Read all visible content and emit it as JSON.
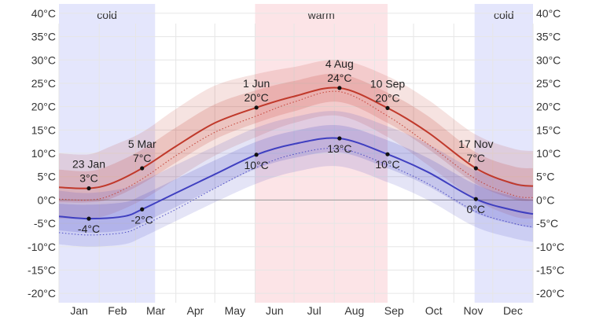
{
  "chart_data": {
    "type": "line",
    "title": "",
    "xlabel": "",
    "ylabel": "",
    "x_axis": {
      "ticks": [
        "Jan",
        "Feb",
        "Mar",
        "Apr",
        "May",
        "Jun",
        "Jul",
        "Aug",
        "Sep",
        "Oct",
        "Nov",
        "Dec"
      ],
      "range_days": [
        0,
        365
      ]
    },
    "y_axis": {
      "ticks": [
        "40°C",
        "35°C",
        "30°C",
        "25°C",
        "20°C",
        "15°C",
        "10°C",
        "5°C",
        "0°C",
        "-5°C",
        "-10°C",
        "-15°C",
        "-20°C"
      ],
      "range": [
        -22,
        42
      ],
      "gridlines": true,
      "zero_line": true
    },
    "seasons": [
      {
        "label": "cold",
        "start_day": 0,
        "end_day": 74,
        "color": "#e4e6fc"
      },
      {
        "label": "warm",
        "start_day": 151,
        "end_day": 253,
        "color": "#fce4e7"
      },
      {
        "label": "cold",
        "start_day": 320,
        "end_day": 365,
        "color": "#e4e6fc"
      }
    ],
    "series": [
      {
        "role": "high",
        "color": "#c0392b",
        "x": [
          0,
          23,
          40,
          64,
          90,
          120,
          152,
          181,
          216,
          253,
          284,
          321,
          350,
          365
        ],
        "values": [
          2.7,
          2.5,
          3.5,
          6.8,
          11.5,
          16.5,
          19.8,
          22.2,
          24.0,
          19.7,
          14.5,
          6.8,
          3.5,
          3.0
        ],
        "band_inner": [
          [
            -0.5,
            6.5
          ],
          [
            -0.5,
            6.2
          ],
          [
            0.3,
            7.5
          ],
          [
            3.5,
            10.8
          ],
          [
            8.0,
            15.5
          ],
          [
            13.0,
            20.5
          ],
          [
            16.5,
            23.5
          ],
          [
            19.0,
            25.5
          ],
          [
            21.0,
            27.0
          ],
          [
            16.5,
            23.0
          ],
          [
            11.0,
            18.0
          ],
          [
            3.5,
            10.2
          ],
          [
            0.2,
            7.2
          ],
          [
            -0.2,
            6.8
          ]
        ],
        "band_outer": [
          [
            -4.0,
            10.0
          ],
          [
            -4.0,
            9.8
          ],
          [
            -3.0,
            11.5
          ],
          [
            0.0,
            14.5
          ],
          [
            4.5,
            19.5
          ],
          [
            9.5,
            24.5
          ],
          [
            13.5,
            27.0
          ],
          [
            16.5,
            28.5
          ],
          [
            18.0,
            30.0
          ],
          [
            13.5,
            26.5
          ],
          [
            7.5,
            21.5
          ],
          [
            0.0,
            14.0
          ],
          [
            -3.5,
            11.0
          ],
          [
            -4.0,
            10.5
          ]
        ],
        "dotted": [
          0.2,
          0.0,
          1.0,
          4.5,
          9.5,
          14.5,
          18.0,
          21.0,
          23.2,
          18.0,
          12.0,
          4.5,
          1.0,
          0.5
        ],
        "annotations": [
          {
            "day": 23,
            "value": 2.5,
            "date_label": "23 Jan",
            "temp_label": "3°C",
            "pos": "above"
          },
          {
            "day": 64,
            "value": 6.8,
            "date_label": "5 Mar",
            "temp_label": "7°C",
            "pos": "above"
          },
          {
            "day": 152,
            "value": 19.8,
            "date_label": "1 Jun",
            "temp_label": "20°C",
            "pos": "above"
          },
          {
            "day": 216,
            "value": 24.0,
            "date_label": "4 Aug",
            "temp_label": "24°C",
            "pos": "above"
          },
          {
            "day": 253,
            "value": 19.7,
            "date_label": "10 Sep",
            "temp_label": "20°C",
            "pos": "above"
          },
          {
            "day": 321,
            "value": 6.8,
            "date_label": "17 Nov",
            "temp_label": "7°C",
            "pos": "above"
          }
        ]
      },
      {
        "role": "low",
        "color": "#3f3fc0",
        "x": [
          0,
          23,
          50,
          64,
          90,
          120,
          152,
          181,
          216,
          253,
          284,
          321,
          350,
          365
        ],
        "values": [
          -3.5,
          -4.0,
          -3.5,
          -2.0,
          1.5,
          5.5,
          9.7,
          12.0,
          13.2,
          9.8,
          6.0,
          0.2,
          -2.2,
          -3.0
        ],
        "band_inner": [
          [
            -6.5,
            -0.8
          ],
          [
            -7.0,
            -1.0
          ],
          [
            -6.5,
            -0.5
          ],
          [
            -5.0,
            1.0
          ],
          [
            -1.5,
            4.5
          ],
          [
            2.5,
            8.5
          ],
          [
            6.7,
            12.5
          ],
          [
            9.0,
            14.8
          ],
          [
            10.2,
            16.0
          ],
          [
            6.8,
            12.8
          ],
          [
            3.0,
            9.0
          ],
          [
            -2.8,
            3.3
          ],
          [
            -5.2,
            0.8
          ],
          [
            -6.0,
            0.0
          ]
        ],
        "band_outer": [
          [
            -9.5,
            2.0
          ],
          [
            -10.0,
            1.5
          ],
          [
            -9.5,
            2.5
          ],
          [
            -8.0,
            4.0
          ],
          [
            -4.5,
            7.5
          ],
          [
            -0.5,
            11.5
          ],
          [
            3.5,
            15.5
          ],
          [
            6.0,
            17.8
          ],
          [
            7.2,
            19.0
          ],
          [
            3.8,
            15.8
          ],
          [
            0.0,
            12.0
          ],
          [
            -5.8,
            6.3
          ],
          [
            -8.2,
            3.8
          ],
          [
            -9.0,
            3.0
          ]
        ],
        "dotted": [
          -7.0,
          -7.5,
          -7.0,
          -5.5,
          -2.0,
          2.5,
          7.0,
          9.8,
          11.0,
          7.5,
          3.5,
          -2.5,
          -5.0,
          -5.8
        ],
        "annotations": [
          {
            "day": 23,
            "value": -4.0,
            "date_label": "",
            "temp_label": "-4°C",
            "pos": "below"
          },
          {
            "day": 64,
            "value": -2.0,
            "date_label": "",
            "temp_label": "-2°C",
            "pos": "below"
          },
          {
            "day": 152,
            "value": 9.7,
            "date_label": "",
            "temp_label": "10°C",
            "pos": "below"
          },
          {
            "day": 216,
            "value": 13.2,
            "date_label": "",
            "temp_label": "13°C",
            "pos": "below"
          },
          {
            "day": 253,
            "value": 9.8,
            "date_label": "",
            "temp_label": "10°C",
            "pos": "below"
          },
          {
            "day": 321,
            "value": 0.2,
            "date_label": "",
            "temp_label": "0°C",
            "pos": "below"
          }
        ]
      }
    ]
  }
}
